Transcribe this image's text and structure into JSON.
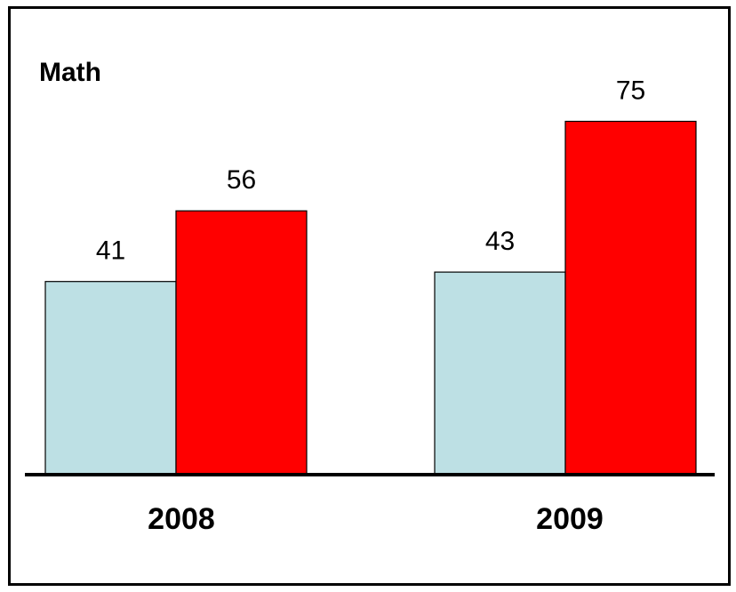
{
  "chart_data": {
    "type": "bar",
    "title": "Math",
    "categories": [
      "2008",
      "2009"
    ],
    "series": [
      {
        "values": [
          41,
          43
        ],
        "color": "#bde0e4"
      },
      {
        "values": [
          56,
          75
        ],
        "color": "#ff0000"
      }
    ],
    "ylim": [
      0,
      80
    ],
    "grid": false,
    "legend": "none",
    "show_value_labels": true
  },
  "colors": {
    "background": "#ffffff",
    "border": "#000000",
    "axis": "#000000",
    "bar_outline": "#000000"
  }
}
